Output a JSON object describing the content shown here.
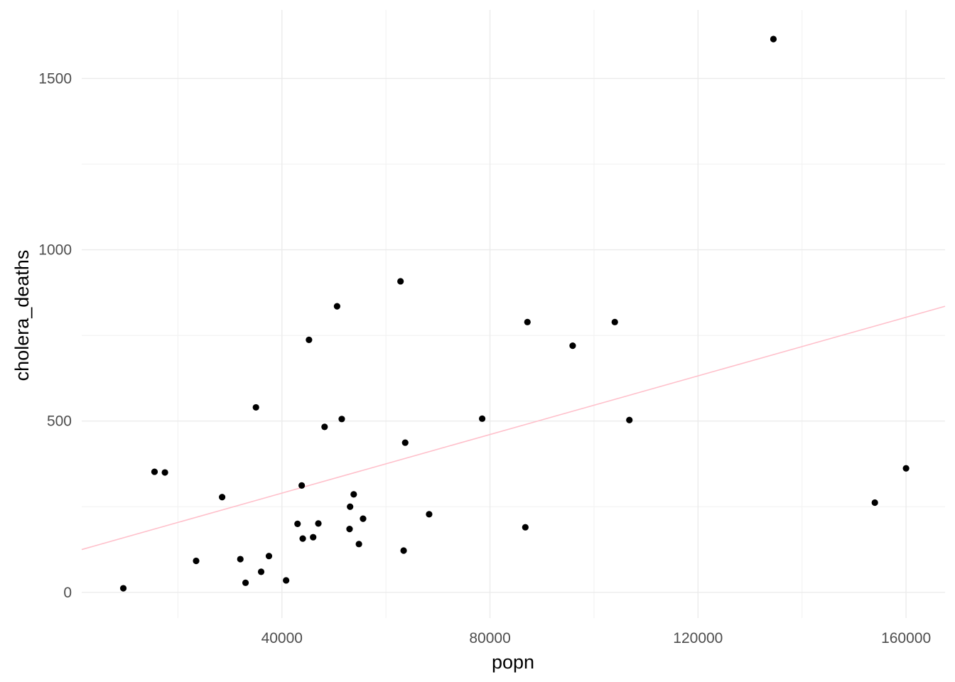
{
  "chart_data": {
    "type": "scatter",
    "title": "",
    "xlabel": "popn",
    "ylabel": "cholera_deaths",
    "xlim": [
      1500,
      167500
    ],
    "ylim": [
      -75,
      1700
    ],
    "x_ticks": [
      40000,
      80000,
      120000,
      160000
    ],
    "x_tick_labels": [
      "40000",
      "80000",
      "120000",
      "160000"
    ],
    "y_ticks": [
      0,
      500,
      1000,
      1500
    ],
    "y_tick_labels": [
      "0",
      "500",
      "1000",
      "1500"
    ],
    "grid": true,
    "theme": "minimal",
    "point_color": "#000000",
    "trend_color": "#ffc0cb",
    "points": [
      {
        "x": 9500,
        "y": 12
      },
      {
        "x": 15500,
        "y": 352
      },
      {
        "x": 17500,
        "y": 350
      },
      {
        "x": 23500,
        "y": 92
      },
      {
        "x": 28500,
        "y": 278
      },
      {
        "x": 32000,
        "y": 97
      },
      {
        "x": 33000,
        "y": 28
      },
      {
        "x": 35000,
        "y": 540
      },
      {
        "x": 36000,
        "y": 60
      },
      {
        "x": 37500,
        "y": 106
      },
      {
        "x": 40800,
        "y": 35
      },
      {
        "x": 43000,
        "y": 200
      },
      {
        "x": 43800,
        "y": 312
      },
      {
        "x": 44000,
        "y": 157
      },
      {
        "x": 45200,
        "y": 737
      },
      {
        "x": 46000,
        "y": 161
      },
      {
        "x": 47000,
        "y": 201
      },
      {
        "x": 48200,
        "y": 483
      },
      {
        "x": 50600,
        "y": 835
      },
      {
        "x": 51500,
        "y": 506
      },
      {
        "x": 53000,
        "y": 185
      },
      {
        "x": 53100,
        "y": 250
      },
      {
        "x": 53800,
        "y": 286
      },
      {
        "x": 54800,
        "y": 141
      },
      {
        "x": 55600,
        "y": 215
      },
      {
        "x": 62800,
        "y": 908
      },
      {
        "x": 63400,
        "y": 122
      },
      {
        "x": 63700,
        "y": 437
      },
      {
        "x": 68300,
        "y": 228
      },
      {
        "x": 78500,
        "y": 507
      },
      {
        "x": 86800,
        "y": 190
      },
      {
        "x": 87200,
        "y": 789
      },
      {
        "x": 95900,
        "y": 720
      },
      {
        "x": 104000,
        "y": 789
      },
      {
        "x": 106800,
        "y": 503
      },
      {
        "x": 134500,
        "y": 1615
      },
      {
        "x": 154000,
        "y": 262
      },
      {
        "x": 160000,
        "y": 362
      }
    ],
    "trend_line": {
      "x": [
        1500,
        167500
      ],
      "y": [
        125,
        835
      ]
    }
  }
}
